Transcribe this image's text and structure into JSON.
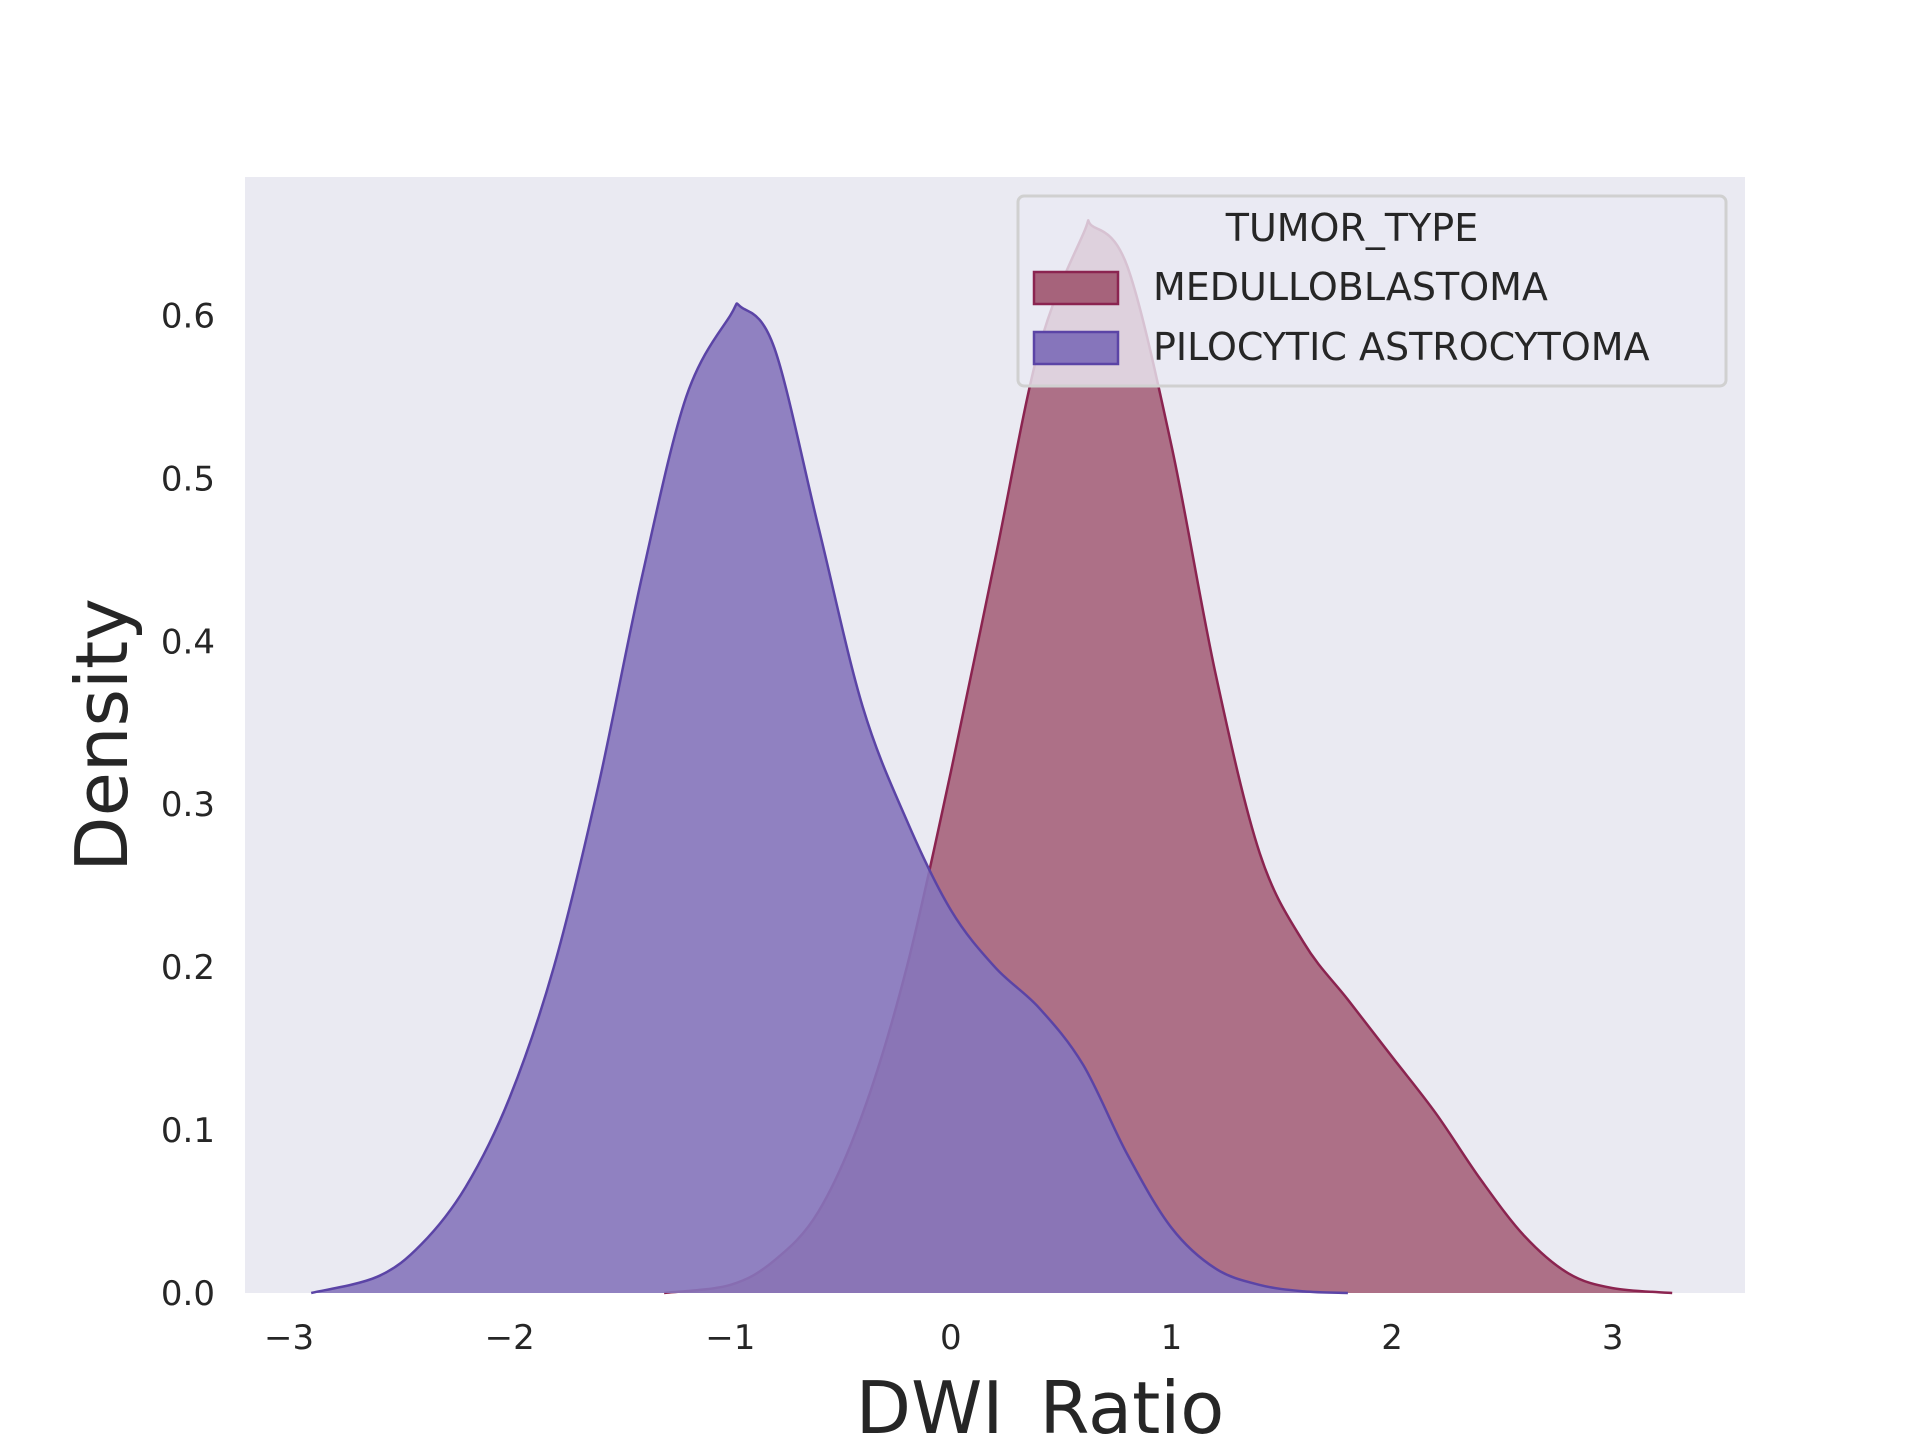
{
  "chart_data": {
    "type": "area",
    "subtype": "kde",
    "title": "",
    "xlabel": "DWI_Ratio",
    "ylabel": "Density",
    "xlim": [
      -3.2,
      3.6
    ],
    "ylim": [
      0,
      0.685
    ],
    "xticks": [
      -3,
      -2,
      -1,
      0,
      1,
      2,
      3
    ],
    "xtick_labels": [
      "−3",
      "−2",
      "−1",
      "0",
      "1",
      "2",
      "3"
    ],
    "yticks": [
      0.0,
      0.1,
      0.2,
      0.3,
      0.4,
      0.5,
      0.6
    ],
    "ytick_labels": [
      "0.0",
      "0.1",
      "0.2",
      "0.3",
      "0.4",
      "0.5",
      "0.6"
    ],
    "grid": false,
    "background_color": "#eaeaf2",
    "legend": {
      "title": "TUMOR_TYPE",
      "placement": "upper right"
    },
    "series": [
      {
        "name": "MEDULLOBLASTOMA",
        "fill_color": "#a6637b",
        "line_color": "#8b2450",
        "x": [
          -1.3,
          -1.0,
          -0.8,
          -0.6,
          -0.4,
          -0.2,
          0.0,
          0.2,
          0.4,
          0.6,
          0.64,
          0.8,
          1.0,
          1.2,
          1.4,
          1.6,
          1.8,
          2.0,
          2.2,
          2.4,
          2.6,
          2.8,
          3.0,
          3.27
        ],
        "y": [
          0.0,
          0.005,
          0.02,
          0.05,
          0.11,
          0.2,
          0.32,
          0.45,
          0.58,
          0.65,
          0.655,
          0.63,
          0.52,
          0.38,
          0.27,
          0.215,
          0.18,
          0.145,
          0.11,
          0.07,
          0.035,
          0.012,
          0.003,
          0.0
        ]
      },
      {
        "name": "PILOCYTIC ASTROCYTOMA",
        "fill_color": "#8675bb",
        "line_color": "#5b44a6",
        "x": [
          -2.9,
          -2.6,
          -2.4,
          -2.2,
          -2.0,
          -1.8,
          -1.6,
          -1.4,
          -1.2,
          -1.0,
          -0.95,
          -0.8,
          -0.6,
          -0.4,
          -0.2,
          0.0,
          0.2,
          0.4,
          0.6,
          0.8,
          1.0,
          1.2,
          1.4,
          1.6,
          1.8
        ],
        "y": [
          0.0,
          0.01,
          0.03,
          0.065,
          0.12,
          0.2,
          0.31,
          0.44,
          0.55,
          0.6,
          0.605,
          0.58,
          0.47,
          0.36,
          0.29,
          0.235,
          0.2,
          0.175,
          0.14,
          0.085,
          0.04,
          0.015,
          0.005,
          0.001,
          0.0
        ]
      }
    ]
  }
}
